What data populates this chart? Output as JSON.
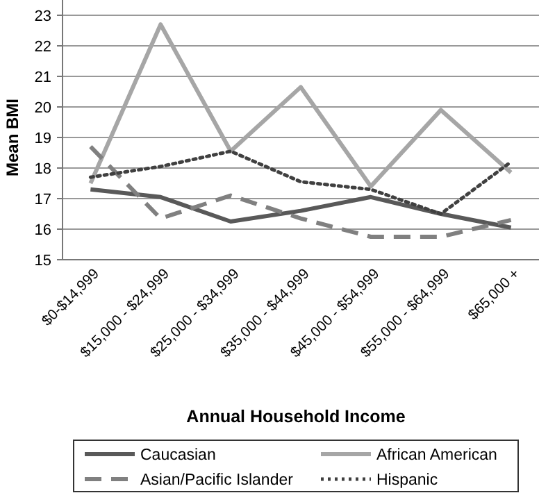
{
  "chart_data": {
    "type": "line",
    "xlabel": "Annual Household Income",
    "ylabel": "Mean BMI",
    "categories": [
      "$0-$14,999",
      "$15,000 - $24,999",
      "$25,000 - $34,999",
      "$35,000 - $44,999",
      "$45,000 - $54,999",
      "$55,000 - $64,999",
      "$65,000 +"
    ],
    "ylim": [
      15,
      23
    ],
    "yticks": [
      15,
      16,
      17,
      18,
      19,
      20,
      21,
      22,
      23
    ],
    "grid": "y",
    "legend": "bottom",
    "marker": "none",
    "series": [
      {
        "name": "Caucasian",
        "color": "#595959",
        "line_style": "solid",
        "values": [
          17.3,
          17.05,
          16.25,
          16.6,
          17.05,
          16.5,
          16.05
        ]
      },
      {
        "name": "African American",
        "color": "#a6a6a6",
        "line_style": "solid",
        "values": [
          17.5,
          22.7,
          18.55,
          20.65,
          17.4,
          19.9,
          17.85
        ]
      },
      {
        "name": "Asian/Pacific Islander",
        "color": "#808080",
        "line_style": "dashed",
        "values": [
          18.7,
          16.35,
          17.1,
          16.35,
          15.75,
          15.75,
          16.3
        ]
      },
      {
        "name": "Hispanic",
        "color": "#404040",
        "line_style": "dotted",
        "values": [
          17.7,
          18.05,
          18.55,
          17.55,
          17.3,
          16.5,
          18.2
        ]
      }
    ]
  }
}
